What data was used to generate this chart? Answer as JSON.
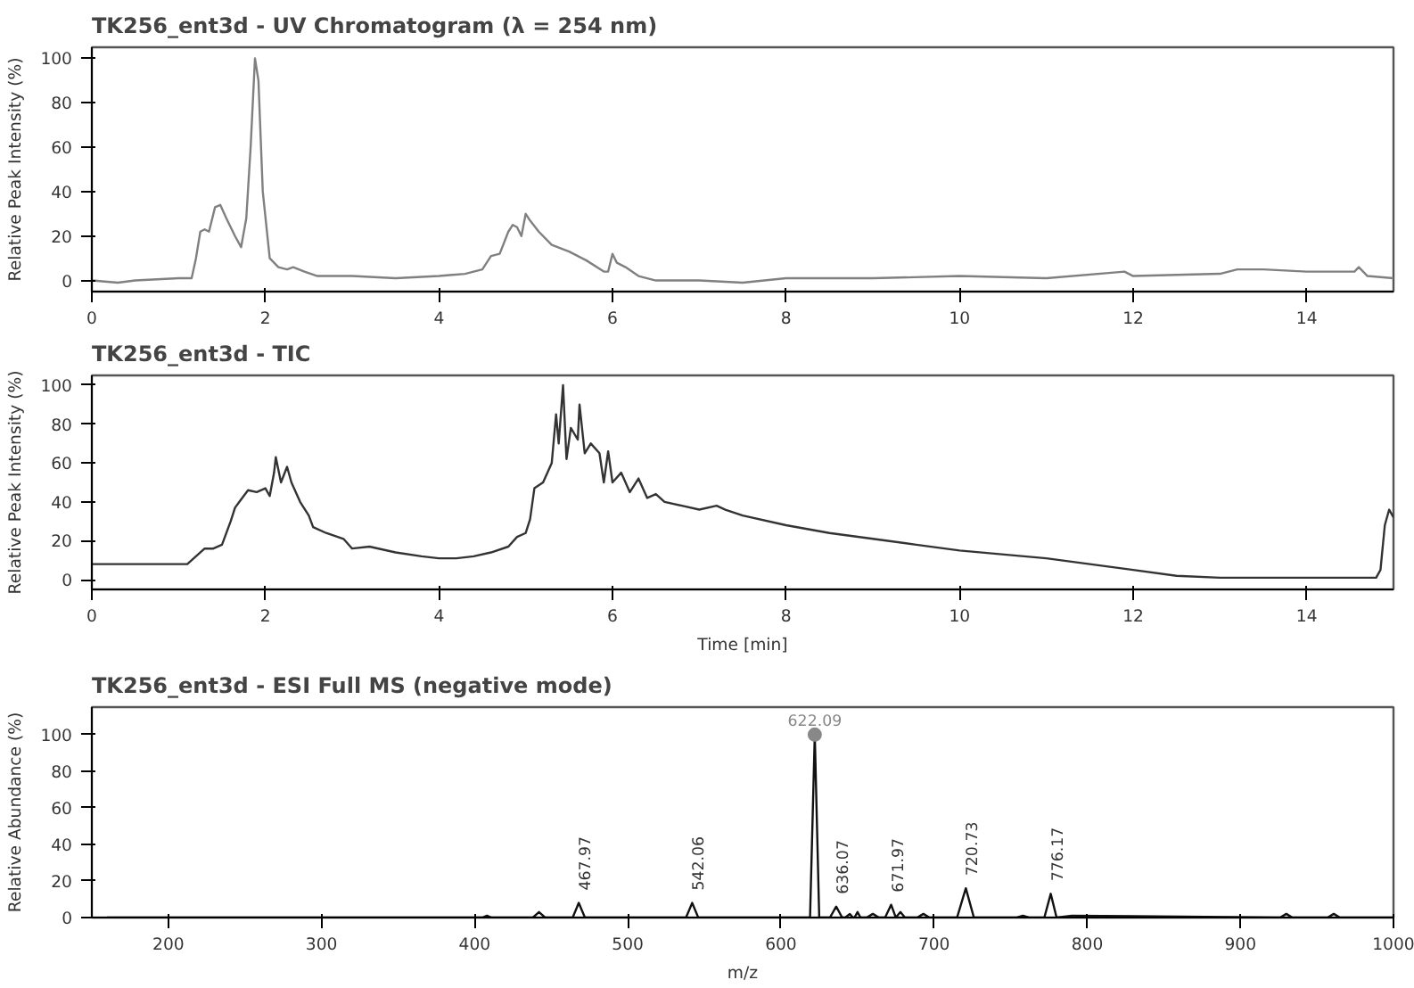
{
  "chart_data": [
    {
      "type": "line",
      "title": "TK256_ent3d - UV Chromatogram (λ = 254 nm)",
      "ylabel": "Relative Peak Intensity (%)",
      "xlim": [
        0,
        15
      ],
      "ylim": [
        -5,
        105
      ],
      "xticks": [
        0,
        2,
        4,
        6,
        8,
        10,
        12,
        14
      ],
      "yticks": [
        0,
        20,
        40,
        60,
        80,
        100
      ],
      "grid": false,
      "series": [
        {
          "color": "#808080",
          "x": [
            0,
            0.3,
            0.5,
            1.0,
            1.15,
            1.2,
            1.25,
            1.3,
            1.35,
            1.42,
            1.48,
            1.55,
            1.65,
            1.72,
            1.78,
            1.83,
            1.88,
            1.92,
            1.97,
            2.05,
            2.15,
            2.25,
            2.32,
            2.45,
            2.6,
            3.0,
            3.5,
            4.0,
            4.3,
            4.5,
            4.6,
            4.7,
            4.8,
            4.85,
            4.9,
            4.95,
            5.0,
            5.05,
            5.15,
            5.3,
            5.5,
            5.7,
            5.9,
            5.95,
            6.0,
            6.05,
            6.15,
            6.3,
            6.5,
            7.0,
            7.5,
            8,
            9,
            10,
            11,
            11.9,
            12,
            13,
            13.2,
            13.5,
            14,
            14.55,
            14.6,
            14.7,
            15
          ],
          "values": [
            0,
            -1,
            0,
            1,
            1,
            10,
            22,
            23,
            22,
            33,
            34,
            28,
            20,
            15,
            28,
            60,
            100,
            90,
            40,
            10,
            6,
            5,
            6,
            4,
            2,
            2,
            1,
            2,
            3,
            5,
            11,
            12,
            22,
            25,
            24,
            20,
            30,
            27,
            22,
            16,
            13,
            9,
            4,
            4,
            12,
            8,
            6,
            2,
            0,
            0,
            -1,
            1,
            1,
            2,
            1,
            4,
            2,
            3,
            5,
            5,
            4,
            4,
            6,
            2,
            1
          ]
        }
      ]
    },
    {
      "type": "line",
      "title": "TK256_ent3d - TIC",
      "xlabel": "Time [min]",
      "ylabel": "Relative Peak Intensity (%)",
      "xlim": [
        0,
        15
      ],
      "ylim": [
        -5,
        105
      ],
      "xticks": [
        0,
        2,
        4,
        6,
        8,
        10,
        12,
        14
      ],
      "yticks": [
        0,
        20,
        40,
        60,
        80,
        100
      ],
      "grid": false,
      "series": [
        {
          "color": "#333333",
          "x": [
            0,
            0.5,
            1.1,
            1.2,
            1.3,
            1.4,
            1.5,
            1.6,
            1.65,
            1.7,
            1.8,
            1.9,
            2.0,
            2.05,
            2.1,
            2.12,
            2.18,
            2.25,
            2.3,
            2.4,
            2.5,
            2.55,
            2.7,
            2.9,
            3.0,
            3.2,
            3.5,
            3.8,
            4.0,
            4.2,
            4.4,
            4.6,
            4.8,
            4.9,
            5.0,
            5.05,
            5.1,
            5.2,
            5.3,
            5.35,
            5.38,
            5.43,
            5.47,
            5.52,
            5.6,
            5.62,
            5.68,
            5.75,
            5.85,
            5.9,
            5.95,
            6.0,
            6.1,
            6.2,
            6.3,
            6.4,
            6.5,
            6.6,
            6.8,
            7.0,
            7.2,
            7.3,
            7.5,
            8.0,
            8.5,
            9.0,
            9.5,
            10,
            11,
            12,
            12.5,
            13,
            14,
            14.8,
            14.85,
            14.9,
            14.95,
            15
          ],
          "values": [
            8,
            8,
            8,
            12,
            16,
            16,
            18,
            30,
            37,
            40,
            46,
            45,
            47,
            43,
            55,
            63,
            50,
            58,
            50,
            40,
            33,
            27,
            24,
            21,
            16,
            17,
            14,
            12,
            11,
            11,
            12,
            14,
            17,
            22,
            24,
            31,
            47,
            50,
            60,
            85,
            70,
            100,
            62,
            78,
            72,
            90,
            65,
            70,
            65,
            50,
            66,
            50,
            55,
            45,
            52,
            42,
            44,
            40,
            38,
            36,
            38,
            36,
            33,
            28,
            24,
            21,
            18,
            15,
            11,
            5,
            2,
            1,
            1,
            1,
            5,
            28,
            36,
            32
          ]
        }
      ]
    },
    {
      "type": "line",
      "title": "TK256_ent3d - ESI Full MS (negative mode)",
      "xlabel": "m/z",
      "ylabel": "Relative Abundance (%)",
      "xlim": [
        150,
        1000
      ],
      "ylim": [
        0,
        115
      ],
      "xticks": [
        200,
        300,
        400,
        500,
        600,
        700,
        800,
        900,
        1000
      ],
      "yticks": [
        0,
        20,
        40,
        60,
        80,
        100
      ],
      "grid": false,
      "series": [
        {
          "color": "#111111",
          "x": [
            160,
            400,
            405,
            408,
            411,
            438,
            442,
            446,
            464,
            467.97,
            472,
            538,
            542.06,
            546,
            619,
            622.09,
            625,
            632,
            636.07,
            640,
            642,
            645,
            647,
            648,
            650,
            652,
            656,
            660,
            664,
            668,
            671.97,
            675,
            678,
            681,
            689,
            693,
            697,
            715,
            720.73,
            726,
            754,
            758,
            762,
            772,
            776.17,
            780,
            790,
            926,
            930,
            934,
            957,
            961,
            965,
            1000
          ],
          "values": [
            0,
            0,
            0,
            1,
            0,
            0,
            3,
            0,
            0,
            8,
            0,
            0,
            8,
            0,
            0,
            100,
            0,
            0,
            6,
            0,
            0,
            2,
            0,
            0,
            3,
            0,
            0,
            2,
            0,
            0,
            7,
            0,
            3,
            0,
            0,
            2,
            0,
            0,
            16,
            0,
            0,
            1,
            0,
            0,
            13,
            0,
            1,
            0,
            2,
            0,
            0,
            2,
            0,
            0
          ]
        },
        {
          "type": "scatter",
          "marker": "circle",
          "color": "#888888",
          "x": [
            622.09
          ],
          "values": [
            100
          ]
        }
      ],
      "annotations": [
        {
          "text": "622.09",
          "x": 622.09,
          "y": 100
        },
        {
          "text": "467.97",
          "x": 467.97,
          "y": 8
        },
        {
          "text": "542.06",
          "x": 542.06,
          "y": 8
        },
        {
          "text": "636.07",
          "x": 636.07,
          "y": 6
        },
        {
          "text": "671.97",
          "x": 671.97,
          "y": 7
        },
        {
          "text": "720.73",
          "x": 720.73,
          "y": 16
        },
        {
          "text": "776.17",
          "x": 776.17,
          "y": 13
        }
      ]
    }
  ]
}
